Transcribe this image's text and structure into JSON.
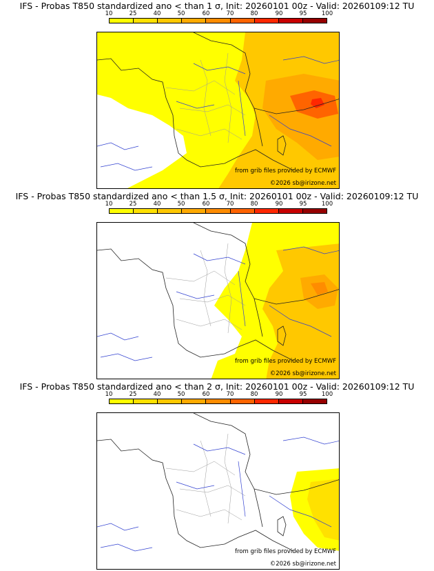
{
  "legend": {
    "ticks": [
      "10",
      "25",
      "40",
      "50",
      "60",
      "70",
      "80",
      "90",
      "95",
      "100"
    ],
    "colors": [
      "#ffff00",
      "#ffe100",
      "#ffc800",
      "#ffaa00",
      "#ff8c00",
      "#ff6400",
      "#ff2800",
      "#c80000",
      "#960000",
      "#500000"
    ]
  },
  "panels": [
    {
      "title": "IFS - Probas T850  standardized ano < than 1 σ, Init: 20260101 00z - Valid: 20260109:12 TU",
      "source_text": "from grib files provided by ECMWF",
      "copyright": "©2026 sb@irizone.net"
    },
    {
      "title": "IFS - Probas T850  standardized ano < than 1.5 σ, Init: 20260101 00z - Valid: 20260109:12 TU",
      "source_text": "from grib files provided by ECMWF",
      "copyright": "©2026 sb@irizone.net"
    },
    {
      "title": "IFS - Probas T850  standardized ano < than 2 σ, Init: 20260101 00z - Valid: 20260109:12 TU",
      "source_text": "from grib files provided by ECMWF",
      "copyright": "©2026 sb@irizone.net"
    }
  ]
}
